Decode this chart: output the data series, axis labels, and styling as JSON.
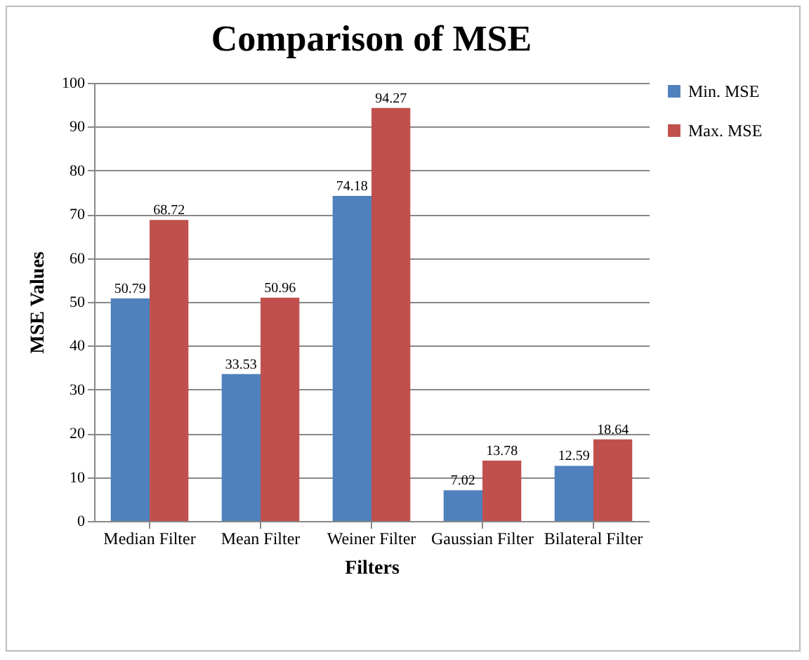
{
  "chart_data": {
    "type": "bar",
    "title": "Comparison of MSE",
    "xlabel": "Filters",
    "ylabel": "MSE Values",
    "categories": [
      "Median Filter",
      "Mean Filter",
      "Weiner Filter",
      "Gaussian Filter",
      "Bilateral Filter"
    ],
    "series": [
      {
        "name": "Min. MSE",
        "color": "#4f81bd",
        "values": [
          50.79,
          33.53,
          74.18,
          7.02,
          12.59
        ]
      },
      {
        "name": "Max. MSE",
        "color": "#c0504d",
        "values": [
          68.72,
          50.96,
          94.27,
          13.78,
          18.64
        ]
      }
    ],
    "ylim": [
      0,
      100
    ],
    "yticks": [
      0,
      10,
      20,
      30,
      40,
      50,
      60,
      70,
      80,
      90,
      100
    ],
    "grid": "y",
    "legend": "right",
    "data_labels": true
  }
}
